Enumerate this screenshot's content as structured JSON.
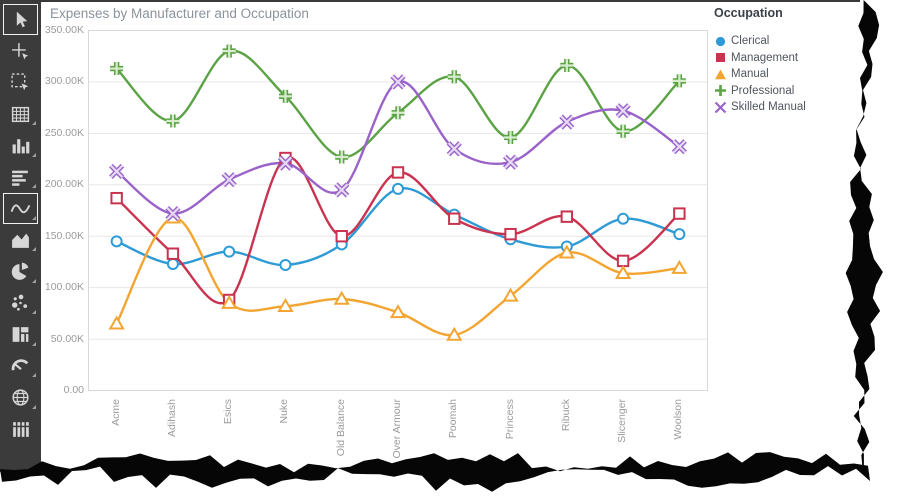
{
  "window": {
    "top_border_color": "#3a3a3a"
  },
  "toolbar": {
    "bg": "#3b3b3b",
    "icon_color": "#d6d6d6",
    "items": [
      {
        "name": "pointer-tool-icon",
        "selected": true,
        "dropdown": false
      },
      {
        "name": "crosshair-pointer-icon",
        "selected": false,
        "dropdown": false
      },
      {
        "name": "marquee-select-icon",
        "selected": false,
        "dropdown": false
      },
      {
        "name": "grid-icon",
        "selected": false,
        "dropdown": true
      },
      {
        "name": "column-chart-icon",
        "selected": false,
        "dropdown": true
      },
      {
        "name": "horizontal-bar-icon",
        "selected": false,
        "dropdown": true
      },
      {
        "name": "spline-chart-icon",
        "selected": true,
        "dropdown": true
      },
      {
        "name": "area-chart-icon",
        "selected": false,
        "dropdown": true
      },
      {
        "name": "pie-chart-icon",
        "selected": false,
        "dropdown": true
      },
      {
        "name": "scatter-chart-icon",
        "selected": false,
        "dropdown": true
      },
      {
        "name": "treemap-icon",
        "selected": false,
        "dropdown": true
      },
      {
        "name": "gauge-icon",
        "selected": false,
        "dropdown": true
      },
      {
        "name": "globe-icon",
        "selected": false,
        "dropdown": true
      },
      {
        "name": "range-bar-icon",
        "selected": false,
        "dropdown": false
      }
    ]
  },
  "chart": {
    "title": "Expenses by Manufacturer and Occupation",
    "title_color": "#8b939c",
    "grid_color": "#e7e7e7",
    "border_color": "#d8d8d8",
    "axis_color": "#c6c6c6",
    "label_color": "#9b9b9b"
  },
  "legend": {
    "title": "Occupation",
    "items": [
      {
        "label": "Clerical",
        "marker": "circle",
        "color": "#2E9BD6"
      },
      {
        "label": "Management",
        "marker": "square",
        "color": "#C9334F"
      },
      {
        "label": "Manual",
        "marker": "triangle",
        "color": "#F2A531"
      },
      {
        "label": "Professional",
        "marker": "plus",
        "color": "#5BA345"
      },
      {
        "label": "Skilled Manual",
        "marker": "x",
        "color": "#9A63C9"
      }
    ]
  },
  "chart_data": {
    "type": "line",
    "subtype": "spline",
    "title": "Expenses by Manufacturer and Occupation",
    "categories": [
      "Acme",
      "Adihash",
      "Esics",
      "Nuke",
      "Old Balance",
      "Over Armour",
      "Poomah",
      "Princess",
      "Ribuck",
      "Slicenger",
      "Woolson"
    ],
    "series": [
      {
        "name": "Clerical",
        "marker": "circle",
        "color": "#2E9BD6",
        "light": "#ffffff",
        "values": [
          145,
          123,
          135,
          122,
          142,
          196,
          171,
          147,
          140,
          167,
          152
        ]
      },
      {
        "name": "Management",
        "marker": "square",
        "color": "#C9334F",
        "light": "#ffffff",
        "values": [
          187,
          133,
          88,
          226,
          150,
          212,
          167,
          152,
          169,
          126,
          172
        ]
      },
      {
        "name": "Manual",
        "marker": "triangle",
        "color": "#F2A531",
        "light": "#ffffff",
        "values": [
          65,
          168,
          85,
          82,
          89,
          76,
          54,
          92,
          134,
          114,
          119
        ]
      },
      {
        "name": "Professional",
        "marker": "plus",
        "color": "#5BA345",
        "light": "#d9ecd0",
        "values": [
          313,
          262,
          330,
          286,
          227,
          270,
          305,
          246,
          316,
          252,
          301
        ]
      },
      {
        "name": "Skilled Manual",
        "marker": "x",
        "color": "#9A63C9",
        "light": "#e5d9f3",
        "values": [
          213,
          172,
          205,
          221,
          195,
          300,
          235,
          222,
          261,
          272,
          237
        ]
      }
    ],
    "y_ticks": [
      "350.00K",
      "300.00K",
      "250.00K",
      "200.00K",
      "150.00K",
      "100.00K",
      "50.00K",
      "0.00"
    ],
    "y_tick_values": [
      350,
      300,
      250,
      200,
      150,
      100,
      50,
      0
    ],
    "ylim": [
      0,
      350
    ],
    "unit": "K",
    "grid": "horizontal",
    "legend_position": "right",
    "x_label_rotation": -90
  }
}
